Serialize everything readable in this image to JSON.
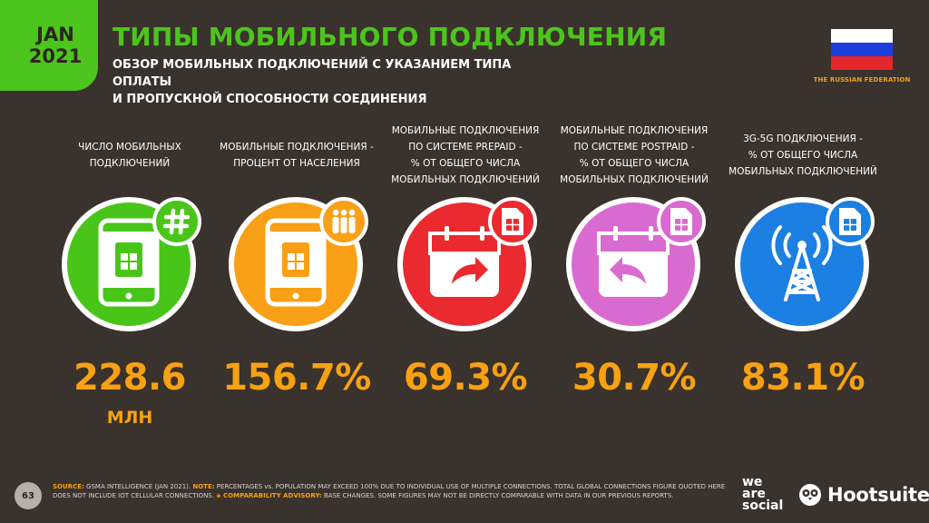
{
  "header": {
    "date_month": "JAN",
    "date_year": "2021",
    "title": "ТИПЫ МОБИЛЬНОГО ПОДКЛЮЧЕНИЯ",
    "subtitle_line1": "ОБЗОР МОБИЛЬНЫХ ПОДКЛЮЧЕНИЙ С УКАЗАНИЕМ ТИПА ОПЛАТЫ",
    "subtitle_line2": "И ПРОПУСКНОЙ СПОСОБНОСТИ СОЕДИНЕНИЯ",
    "country": "THE RUSSIAN FEDERATION",
    "flag_colors": [
      "#ffffff",
      "#1c3fdc",
      "#e5262b"
    ]
  },
  "metrics": [
    {
      "label_lines": [
        "ЧИСЛО МОБИЛЬНЫХ",
        "ПОДКЛЮЧЕНИЙ"
      ],
      "value": "228.6",
      "unit": "МЛН",
      "color": "#49c51a",
      "icon": "phone-icon",
      "badge_icon": "hashtag-icon"
    },
    {
      "label_lines": [
        "МОБИЛЬНЫЕ ПОДКЛЮЧЕНИЯ -",
        "ПРОЦЕНТ ОТ НАСЕЛЕНИЯ"
      ],
      "value": "156.7%",
      "unit": "",
      "color": "#f9a016",
      "icon": "phone-icon",
      "badge_icon": "people-icon"
    },
    {
      "label_lines": [
        "МОБИЛЬНЫЕ ПОДКЛЮЧЕНИЯ",
        "ПО СИСТЕМЕ PREPAID -",
        "% ОТ ОБЩЕГО ЧИСЛА",
        "МОБИЛЬНЫХ ПОДКЛЮЧЕНИЙ"
      ],
      "value": "69.3%",
      "unit": "",
      "color": "#ea2a2f",
      "icon": "calendar-forward-icon",
      "badge_icon": "sim-card-icon"
    },
    {
      "label_lines": [
        "МОБИЛЬНЫЕ ПОДКЛЮЧЕНИЯ",
        "ПО СИСТЕМЕ POSTPAID -",
        "% ОТ ОБЩЕГО ЧИСЛА",
        "МОБИЛЬНЫХ ПОДКЛЮЧЕНИЙ"
      ],
      "value": "30.7%",
      "unit": "",
      "color": "#d96bd0",
      "icon": "calendar-back-icon",
      "badge_icon": "sim-card-icon"
    },
    {
      "label_lines": [
        "3G-5G ПОДКЛЮЧЕНИЯ -",
        "% ОТ ОБЩЕГО ЧИСЛА",
        "МОБИЛЬНЫХ ПОДКЛЮЧЕНИЙ"
      ],
      "value": "83.1%",
      "unit": "",
      "color": "#1c7fe2",
      "icon": "cell-tower-icon",
      "badge_icon": "sim-card-icon"
    }
  ],
  "footer": {
    "page_number": "63",
    "source_label": "SOURCE:",
    "source_text": "GSMA INTELLIGENCE (JAN 2021).",
    "note_label": "NOTE:",
    "note_text": "PERCENTAGES vs. POPULATION MAY EXCEED 100% DUE TO INDIVIDUAL USE OF MULTIPLE CONNECTIONS. TOTAL GLOBAL CONNECTIONS FIGURE QUOTED HERE DOES NOT INCLUDE IOT CELLULAR CONNECTIONS.",
    "advisory_label": "◈ COMPARABILITY ADVISORY:",
    "advisory_text": "BASE CHANGES. SOME FIGURES MAY NOT BE DIRECTLY COMPARABLE WITH DATA IN OUR PREVIOUS REPORTS.",
    "brand1_line1": "we",
    "brand1_line2": "are",
    "brand1_line3": "social",
    "brand2": "Hootsuite"
  }
}
